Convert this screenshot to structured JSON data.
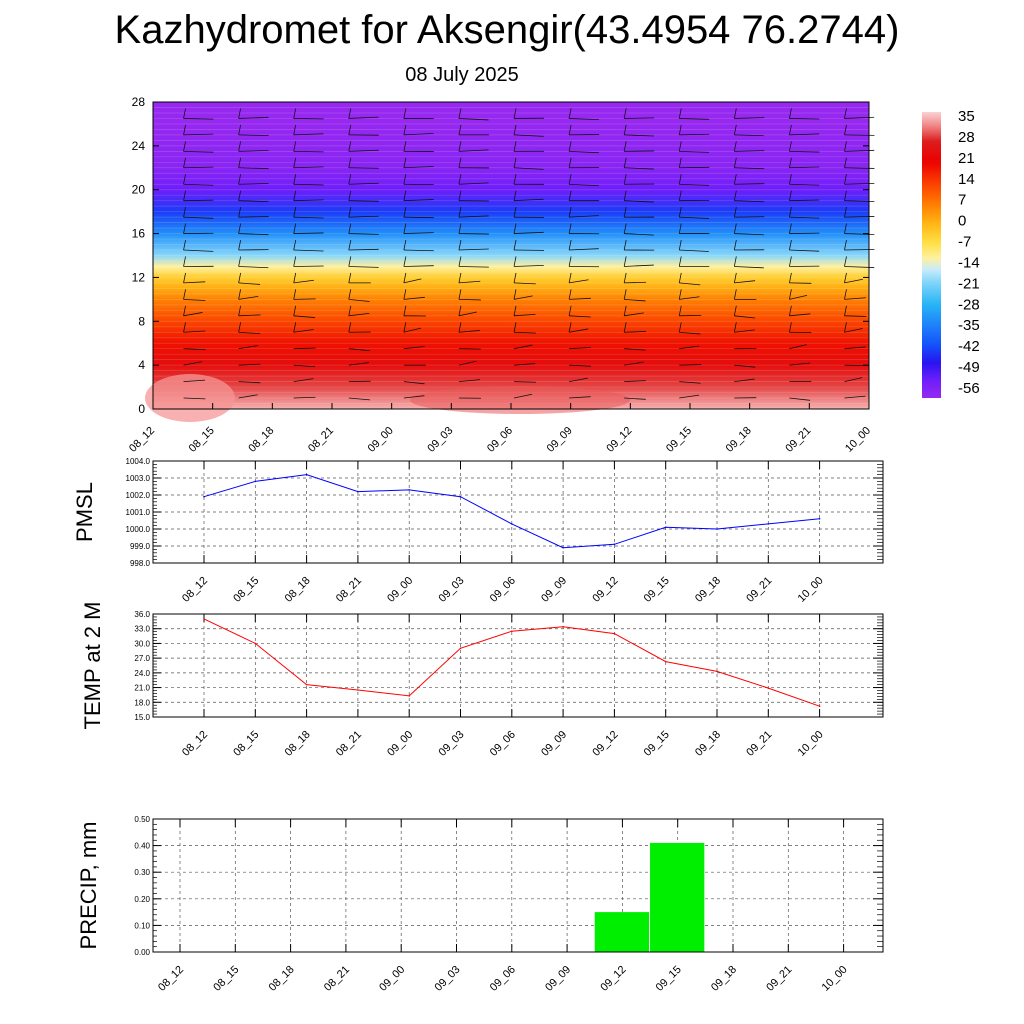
{
  "title": "Kazhydromet for Aksengir(43.4954 76.2744)",
  "subtitle": "08 July 2025",
  "colors": {
    "pmsl_line": "#0000ff",
    "temp_line": "#ff0000",
    "precip_bar": "#00ee00"
  },
  "chart_data": [
    {
      "type": "heatmap",
      "name": "temperature-height-section",
      "x_labels": [
        "08_12",
        "08_15",
        "08_18",
        "08_21",
        "09_00",
        "09_03",
        "09_06",
        "09_09",
        "09_12",
        "09_15",
        "09_18",
        "09_21",
        "10_00"
      ],
      "y_ticks": [
        "0",
        "4",
        "8",
        "12",
        "16",
        "20",
        "24",
        "28"
      ],
      "ylim": [
        0,
        28
      ],
      "colorbar_labels": [
        "35",
        "28",
        "21",
        "14",
        "7",
        "0",
        "-7",
        "-14",
        "-21",
        "-28",
        "-35",
        "-42",
        "-49",
        "-56"
      ],
      "colorbar_range": [
        -60,
        38
      ],
      "temperature_profile": {
        "heights": [
          0,
          2,
          4,
          6,
          8,
          10,
          11,
          12,
          13,
          14,
          16,
          18,
          20,
          22,
          24,
          26,
          28
        ],
        "values": [
          36,
          30,
          24,
          19,
          13,
          6,
          1,
          -4,
          -12,
          -20,
          -33,
          -44,
          -54,
          -58,
          -59,
          -60,
          -60
        ]
      },
      "wind_barbs": true
    },
    {
      "type": "line",
      "name": "pmsl",
      "ylabel": "PMSL",
      "categories": [
        "08_12",
        "08_15",
        "08_18",
        "08_21",
        "09_00",
        "09_03",
        "09_06",
        "09_09",
        "09_12",
        "09_15",
        "09_18",
        "09_21",
        "10_00"
      ],
      "values": [
        1001.9,
        1002.8,
        1003.2,
        1002.2,
        1002.3,
        1001.9,
        1000.3,
        998.9,
        999.1,
        1000.1,
        1000.0,
        1000.3,
        1000.6
      ],
      "ylim": [
        998.0,
        1004.0
      ],
      "y_ticks": [
        "998.0",
        "999.0",
        "1000.0",
        "1001.0",
        "1002.0",
        "1003.0",
        "1004.0"
      ],
      "grid": true
    },
    {
      "type": "line",
      "name": "temp-2m",
      "ylabel": "TEMP at 2 M",
      "categories": [
        "08_12",
        "08_15",
        "08_18",
        "08_21",
        "09_00",
        "09_03",
        "09_06",
        "09_09",
        "09_12",
        "09_15",
        "09_18",
        "09_21",
        "10_00"
      ],
      "values": [
        35.0,
        30.0,
        21.6,
        20.5,
        19.3,
        29.0,
        32.5,
        33.4,
        32.0,
        26.3,
        24.3,
        20.9,
        17.2
      ],
      "ylim": [
        15.0,
        36.0
      ],
      "y_ticks": [
        "15.0",
        "18.0",
        "21.0",
        "24.0",
        "27.0",
        "30.0",
        "33.0",
        "36.0"
      ],
      "grid": true
    },
    {
      "type": "bar",
      "name": "precip",
      "ylabel": "PRECIP, mm",
      "categories": [
        "08_12",
        "08_15",
        "08_18",
        "08_21",
        "09_00",
        "09_03",
        "09_06",
        "09_09",
        "09_12",
        "09_15",
        "09_18",
        "09_21",
        "10_00"
      ],
      "values": [
        0,
        0,
        0,
        0,
        0,
        0,
        0,
        0,
        0.15,
        0.41,
        0,
        0,
        0
      ],
      "ylim": [
        0,
        0.5
      ],
      "y_ticks": [
        "0.00",
        "0.10",
        "0.20",
        "0.30",
        "0.40",
        "0.50"
      ],
      "grid": true
    }
  ]
}
